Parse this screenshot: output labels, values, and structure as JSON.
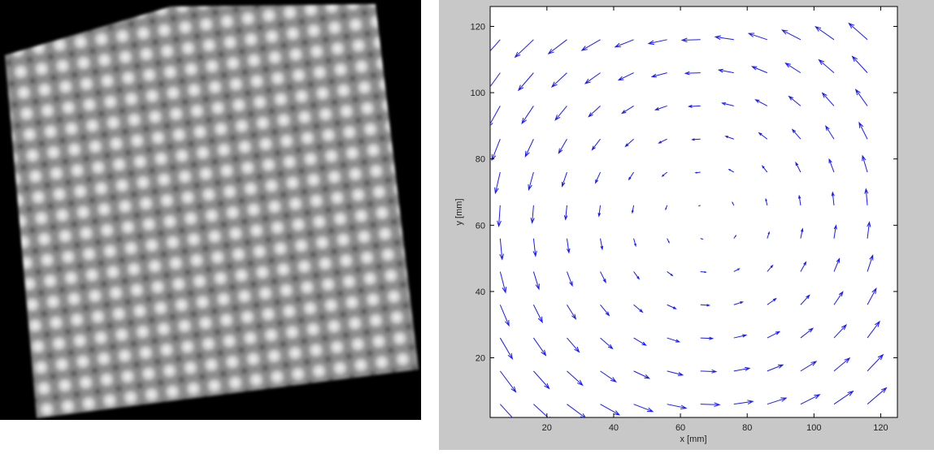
{
  "chart_data": {
    "type": "quiver",
    "x_label": "x [mm]",
    "y_label": "y [mm]",
    "xlim": [
      3,
      125
    ],
    "ylim": [
      2,
      126
    ],
    "xticks": [
      20,
      40,
      60,
      80,
      100,
      120
    ],
    "yticks": [
      20,
      40,
      60,
      80,
      100,
      120
    ],
    "color": "#1a1aff",
    "x": [
      6,
      16,
      26,
      36,
      46,
      56,
      66,
      76,
      86,
      96,
      106,
      116
    ],
    "y": [
      6,
      16,
      26,
      36,
      46,
      56,
      66,
      76,
      86,
      96,
      106,
      116
    ],
    "u": [
      [
        6.7,
        6.7,
        6.7,
        6.7,
        6.7,
        6.7,
        6.7,
        6.7,
        6.7,
        6.7,
        6.7,
        6.7
      ],
      [
        5.5,
        5.5,
        5.5,
        5.5,
        5.5,
        5.5,
        5.5,
        5.5,
        5.5,
        5.5,
        5.5,
        5.5
      ],
      [
        4.3,
        4.3,
        4.3,
        4.3,
        4.3,
        4.3,
        4.3,
        4.3,
        4.3,
        4.3,
        4.3,
        4.3
      ],
      [
        3.1,
        3.1,
        3.1,
        3.1,
        3.1,
        3.1,
        3.1,
        3.1,
        3.1,
        3.1,
        3.1,
        3.1
      ],
      [
        1.9,
        1.9,
        1.9,
        1.9,
        1.9,
        1.9,
        1.9,
        1.9,
        1.9,
        1.9,
        1.9,
        1.9
      ],
      [
        0.7,
        0.7,
        0.7,
        0.7,
        0.7,
        0.7,
        0.7,
        0.7,
        0.7,
        0.7,
        0.7,
        0.7
      ],
      [
        -0.5,
        -0.5,
        -0.5,
        -0.5,
        -0.5,
        -0.5,
        -0.5,
        -0.5,
        -0.5,
        -0.5,
        -0.5,
        -0.5
      ],
      [
        -1.7,
        -1.7,
        -1.7,
        -1.7,
        -1.7,
        -1.7,
        -1.7,
        -1.7,
        -1.7,
        -1.7,
        -1.7,
        -1.7
      ],
      [
        -2.9,
        -2.9,
        -2.9,
        -2.9,
        -2.9,
        -2.9,
        -2.9,
        -2.9,
        -2.9,
        -2.9,
        -2.9,
        -2.9
      ],
      [
        -4.1,
        -4.1,
        -4.1,
        -4.1,
        -4.1,
        -4.1,
        -4.1,
        -4.1,
        -4.1,
        -4.1,
        -4.1,
        -4.1
      ],
      [
        -5.3,
        -5.3,
        -5.3,
        -5.3,
        -5.3,
        -5.3,
        -5.3,
        -5.3,
        -5.3,
        -5.3,
        -5.3,
        -5.3
      ],
      [
        -6.5,
        -6.5,
        -6.5,
        -6.5,
        -6.5,
        -6.5,
        -6.5,
        -6.5,
        -6.5,
        -6.5,
        -6.5,
        -6.5
      ]
    ],
    "v": [
      [
        -7.4,
        -6.2,
        -5.0,
        -3.8,
        -2.6,
        -1.4,
        -0.2,
        1.0,
        2.2,
        3.4,
        4.6,
        5.8
      ],
      [
        -7.4,
        -6.2,
        -5.0,
        -3.8,
        -2.6,
        -1.4,
        -0.2,
        1.0,
        2.2,
        3.4,
        4.6,
        5.8
      ],
      [
        -7.4,
        -6.2,
        -5.0,
        -3.8,
        -2.6,
        -1.4,
        -0.2,
        1.0,
        2.2,
        3.4,
        4.6,
        5.8
      ],
      [
        -7.4,
        -6.2,
        -5.0,
        -3.8,
        -2.6,
        -1.4,
        -0.2,
        1.0,
        2.2,
        3.4,
        4.6,
        5.8
      ],
      [
        -7.4,
        -6.2,
        -5.0,
        -3.8,
        -2.6,
        -1.4,
        -0.2,
        1.0,
        2.2,
        3.4,
        4.6,
        5.8
      ],
      [
        -7.4,
        -6.2,
        -5.0,
        -3.8,
        -2.6,
        -1.4,
        -0.2,
        1.0,
        2.2,
        3.4,
        4.6,
        5.8
      ],
      [
        -7.4,
        -6.2,
        -5.0,
        -3.8,
        -2.6,
        -1.4,
        -0.2,
        1.0,
        2.2,
        3.4,
        4.6,
        5.8
      ],
      [
        -7.4,
        -6.2,
        -5.0,
        -3.8,
        -2.6,
        -1.4,
        -0.2,
        1.0,
        2.2,
        3.4,
        4.6,
        5.8
      ],
      [
        -7.4,
        -6.2,
        -5.0,
        -3.8,
        -2.6,
        -1.4,
        -0.2,
        1.0,
        2.2,
        3.4,
        4.6,
        5.8
      ],
      [
        -7.4,
        -6.2,
        -5.0,
        -3.8,
        -2.6,
        -1.4,
        -0.2,
        1.0,
        2.2,
        3.4,
        4.6,
        5.8
      ],
      [
        -7.4,
        -6.2,
        -5.0,
        -3.8,
        -2.6,
        -1.4,
        -0.2,
        1.0,
        2.2,
        3.4,
        4.6,
        5.8
      ],
      [
        -7.4,
        -6.2,
        -5.0,
        -3.8,
        -2.6,
        -1.4,
        -0.2,
        1.0,
        2.2,
        3.4,
        4.6,
        5.8
      ]
    ]
  }
}
